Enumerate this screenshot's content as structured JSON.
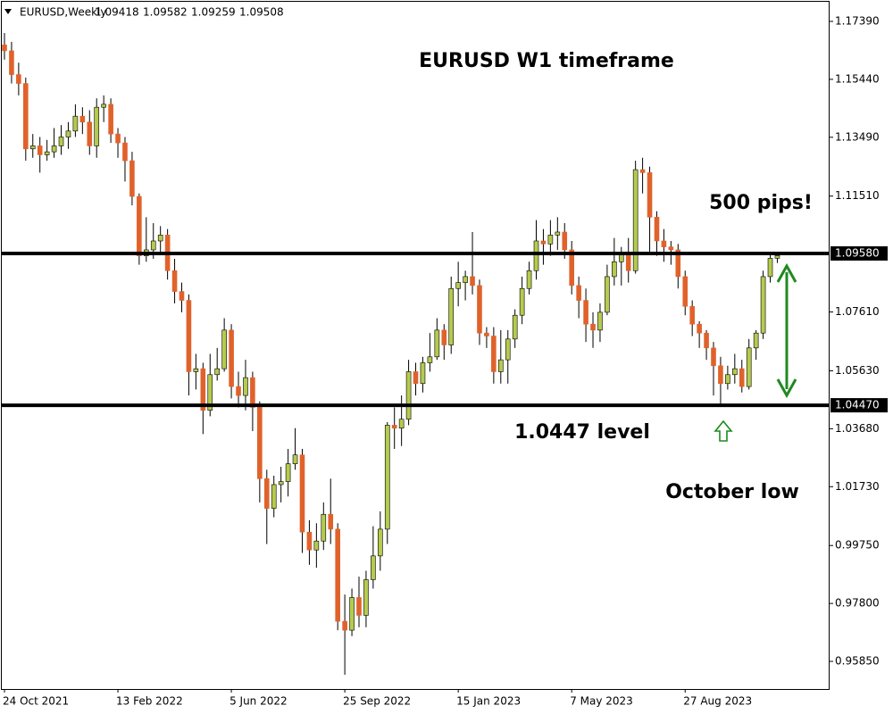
{
  "chart_data": {
    "type": "candlestick",
    "symbol": "EURUSD,Weekly",
    "header_values": [
      "chart_data.open.109",
      "chart_data.high.109",
      "chart_data.low.109",
      "chart_data.close.109"
    ],
    "annotations": [
      "EURUSD W1 timeframe",
      "500 pips!",
      "1.0447 level",
      "October low"
    ],
    "up_color": "#b5cb4f",
    "down_color": "#e0622b",
    "categories": [
      "24 Oct 2021",
      null,
      null,
      null,
      null,
      null,
      null,
      null,
      null,
      null,
      null,
      null,
      null,
      null,
      null,
      null,
      "13 Feb 2022",
      null,
      null,
      null,
      null,
      null,
      null,
      null,
      null,
      null,
      null,
      null,
      null,
      null,
      null,
      null,
      "5 Jun 2022",
      null,
      null,
      null,
      null,
      null,
      null,
      null,
      null,
      null,
      null,
      null,
      null,
      null,
      null,
      null,
      "25 Sep 2022",
      null,
      null,
      null,
      null,
      null,
      null,
      null,
      null,
      null,
      null,
      null,
      null,
      null,
      null,
      null,
      "15 Jan 2023",
      null,
      null,
      null,
      null,
      null,
      null,
      null,
      null,
      null,
      null,
      null,
      null,
      null,
      null,
      null,
      "7 May 2023",
      null,
      null,
      null,
      null,
      null,
      null,
      null,
      null,
      null,
      null,
      null,
      null,
      null,
      null,
      null,
      "27 Aug 2023",
      null,
      null,
      null,
      null,
      null,
      null,
      null,
      null,
      null,
      null,
      null,
      null,
      null
    ],
    "open": [
      1.166,
      1.164,
      1.156,
      1.153,
      1.131,
      1.132,
      1.129,
      1.13,
      1.132,
      1.135,
      1.137,
      1.142,
      1.14,
      1.132,
      1.145,
      1.146,
      1.136,
      1.133,
      1.127,
      1.115,
      1.095,
      1.097,
      1.1,
      1.102,
      1.09,
      1.083,
      1.08,
      1.056,
      1.057,
      1.043,
      1.055,
      1.057,
      1.07,
      1.051,
      1.048,
      1.054,
      1.044,
      1.02,
      1.01,
      1.018,
      1.019,
      1.025,
      1.028,
      1.002,
      0.996,
      0.999,
      1.008,
      1.003,
      0.972,
      0.969,
      0.98,
      0.974,
      0.986,
      0.994,
      1.003,
      1.038,
      1.037,
      1.04,
      1.056,
      1.052,
      1.059,
      1.061,
      1.07,
      1.065,
      1.084,
      1.086,
      1.088,
      1.085,
      1.069,
      1.068,
      1.056,
      1.06,
      1.067,
      1.075,
      1.084,
      1.09,
      1.1,
      1.099,
      1.102,
      1.103,
      1.097,
      1.085,
      1.08,
      1.072,
      1.07,
      1.076,
      1.088,
      1.093,
      1.096,
      1.09,
      1.124,
      1.123,
      1.108,
      1.1,
      1.098,
      1.097,
      1.088,
      1.078,
      1.072,
      1.069,
      1.064,
      1.058,
      1.052,
      1.055,
      1.057,
      1.051,
      1.064,
      1.069,
      1.088,
      1.09418
    ],
    "high": [
      1.17,
      1.167,
      1.16,
      1.155,
      1.136,
      1.135,
      1.134,
      1.138,
      1.139,
      1.14,
      1.146,
      1.145,
      1.144,
      1.148,
      1.149,
      1.148,
      1.138,
      1.135,
      1.13,
      1.116,
      1.108,
      1.106,
      1.105,
      1.104,
      1.094,
      1.086,
      1.082,
      1.062,
      1.059,
      1.062,
      1.064,
      1.074,
      1.072,
      1.056,
      1.06,
      1.056,
      1.046,
      1.023,
      1.021,
      1.024,
      1.03,
      1.037,
      1.03,
      1.006,
      1.005,
      1.012,
      1.02,
      1.005,
      0.981,
      0.983,
      0.987,
      0.989,
      1.004,
      1.009,
      1.039,
      1.044,
      1.048,
      1.06,
      1.059,
      1.061,
      1.069,
      1.074,
      1.072,
      1.088,
      1.093,
      1.09,
      1.103,
      1.087,
      1.071,
      1.071,
      1.07,
      1.07,
      1.077,
      1.088,
      1.093,
      1.107,
      1.104,
      1.107,
      1.108,
      1.106,
      1.1,
      1.088,
      1.084,
      1.076,
      1.079,
      1.092,
      1.101,
      1.098,
      1.101,
      1.127,
      1.128,
      1.125,
      1.11,
      1.104,
      1.1,
      1.099,
      1.09,
      1.08,
      1.073,
      1.07,
      1.066,
      1.061,
      1.058,
      1.062,
      1.06,
      1.067,
      1.07,
      1.09,
      1.096,
      1.09582
    ],
    "low": [
      1.161,
      1.153,
      1.149,
      1.127,
      1.128,
      1.123,
      1.127,
      1.128,
      1.129,
      1.131,
      1.135,
      1.136,
      1.129,
      1.128,
      1.14,
      1.133,
      1.128,
      1.12,
      1.112,
      1.092,
      1.093,
      1.094,
      1.096,
      1.087,
      1.079,
      1.076,
      1.048,
      1.05,
      1.035,
      1.041,
      1.053,
      1.056,
      1.047,
      1.044,
      1.043,
      1.036,
      1.012,
      0.998,
      1.007,
      1.012,
      1.014,
      1.023,
      0.995,
      0.991,
      0.99,
      0.996,
      0.998,
      0.969,
      0.954,
      0.967,
      0.97,
      0.97,
      0.983,
      0.989,
      0.998,
      1.03,
      1.031,
      1.038,
      1.048,
      1.049,
      1.056,
      1.06,
      1.06,
      1.062,
      1.078,
      1.08,
      1.082,
      1.065,
      1.064,
      1.052,
      1.052,
      1.052,
      1.064,
      1.072,
      1.082,
      1.087,
      1.092,
      1.095,
      1.097,
      1.094,
      1.082,
      1.074,
      1.066,
      1.064,
      1.066,
      1.075,
      1.085,
      1.085,
      1.086,
      1.089,
      1.116,
      1.096,
      1.095,
      1.093,
      1.092,
      1.084,
      1.075,
      1.068,
      1.064,
      1.06,
      1.048,
      1.0448,
      1.05,
      1.052,
      1.049,
      1.05,
      1.06,
      1.067,
      1.086,
      1.09259
    ],
    "close": [
      1.164,
      1.156,
      1.153,
      1.131,
      1.132,
      1.129,
      1.13,
      1.132,
      1.135,
      1.137,
      1.142,
      1.14,
      1.132,
      1.145,
      1.146,
      1.136,
      1.133,
      1.127,
      1.115,
      1.095,
      1.097,
      1.1,
      1.102,
      1.09,
      1.083,
      1.08,
      1.056,
      1.057,
      1.043,
      1.055,
      1.057,
      1.07,
      1.051,
      1.048,
      1.054,
      1.044,
      1.02,
      1.01,
      1.018,
      1.019,
      1.025,
      1.028,
      1.002,
      0.996,
      0.999,
      1.008,
      1.003,
      0.972,
      0.969,
      0.98,
      0.974,
      0.986,
      0.994,
      1.003,
      1.038,
      1.037,
      1.04,
      1.056,
      1.052,
      1.059,
      1.061,
      1.07,
      1.065,
      1.084,
      1.086,
      1.088,
      1.085,
      1.069,
      1.068,
      1.056,
      1.06,
      1.067,
      1.075,
      1.084,
      1.09,
      1.1,
      1.099,
      1.102,
      1.103,
      1.097,
      1.085,
      1.08,
      1.072,
      1.07,
      1.076,
      1.088,
      1.093,
      1.096,
      1.09,
      1.124,
      1.123,
      1.108,
      1.1,
      1.098,
      1.097,
      1.088,
      1.078,
      1.072,
      1.069,
      1.064,
      1.058,
      1.052,
      1.055,
      1.057,
      1.051,
      1.064,
      1.069,
      1.088,
      1.09418,
      1.09508
    ],
    "ylim": [
      0.9492,
      1.1811
    ],
    "yticks": [
      {
        "value": 1.1739,
        "label": "1.17390"
      },
      {
        "value": 1.1544,
        "label": "1.15440"
      },
      {
        "value": 1.1349,
        "label": "1.13490"
      },
      {
        "value": 1.1151,
        "label": "1.11510"
      },
      {
        "value": 1.0761,
        "label": "1.07610"
      },
      {
        "value": 1.0563,
        "label": "1.05630"
      },
      {
        "value": 1.0368,
        "label": "1.03680"
      },
      {
        "value": 1.0173,
        "label": "1.01730"
      },
      {
        "value": 0.9975,
        "label": "0.99750"
      },
      {
        "value": 0.978,
        "label": "0.97800"
      },
      {
        "value": 0.9585,
        "label": "0.95850"
      }
    ],
    "hlines": [
      {
        "value": 1.0958,
        "label": "1.09580"
      },
      {
        "value": 1.0447,
        "label": "1.04470"
      }
    ]
  }
}
